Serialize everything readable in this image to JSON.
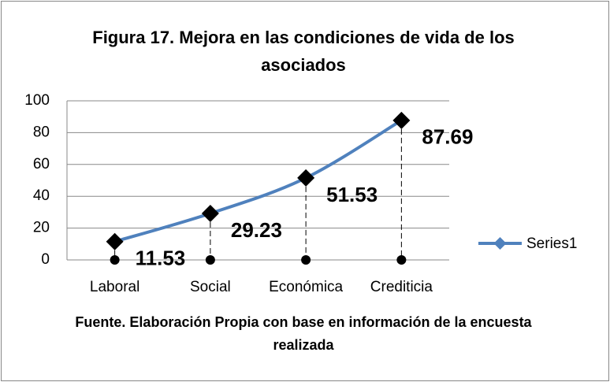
{
  "chart_data": {
    "type": "line",
    "title": "Figura 17. Mejora en las condiciones de vida de los asociados",
    "x_label": "Fuente. Elaboración Propia con base en información de la encuesta realizada",
    "categories": [
      "Laboral",
      "Social",
      "Económica",
      "Crediticia"
    ],
    "series": [
      {
        "name": "Series1",
        "color": "#4f81bd",
        "values": [
          11.53,
          29.23,
          51.53,
          87.69
        ]
      }
    ],
    "ylim": [
      0,
      100
    ],
    "yticks": [
      0,
      20,
      40,
      60,
      80,
      100
    ],
    "grid": true,
    "legend": "right"
  }
}
